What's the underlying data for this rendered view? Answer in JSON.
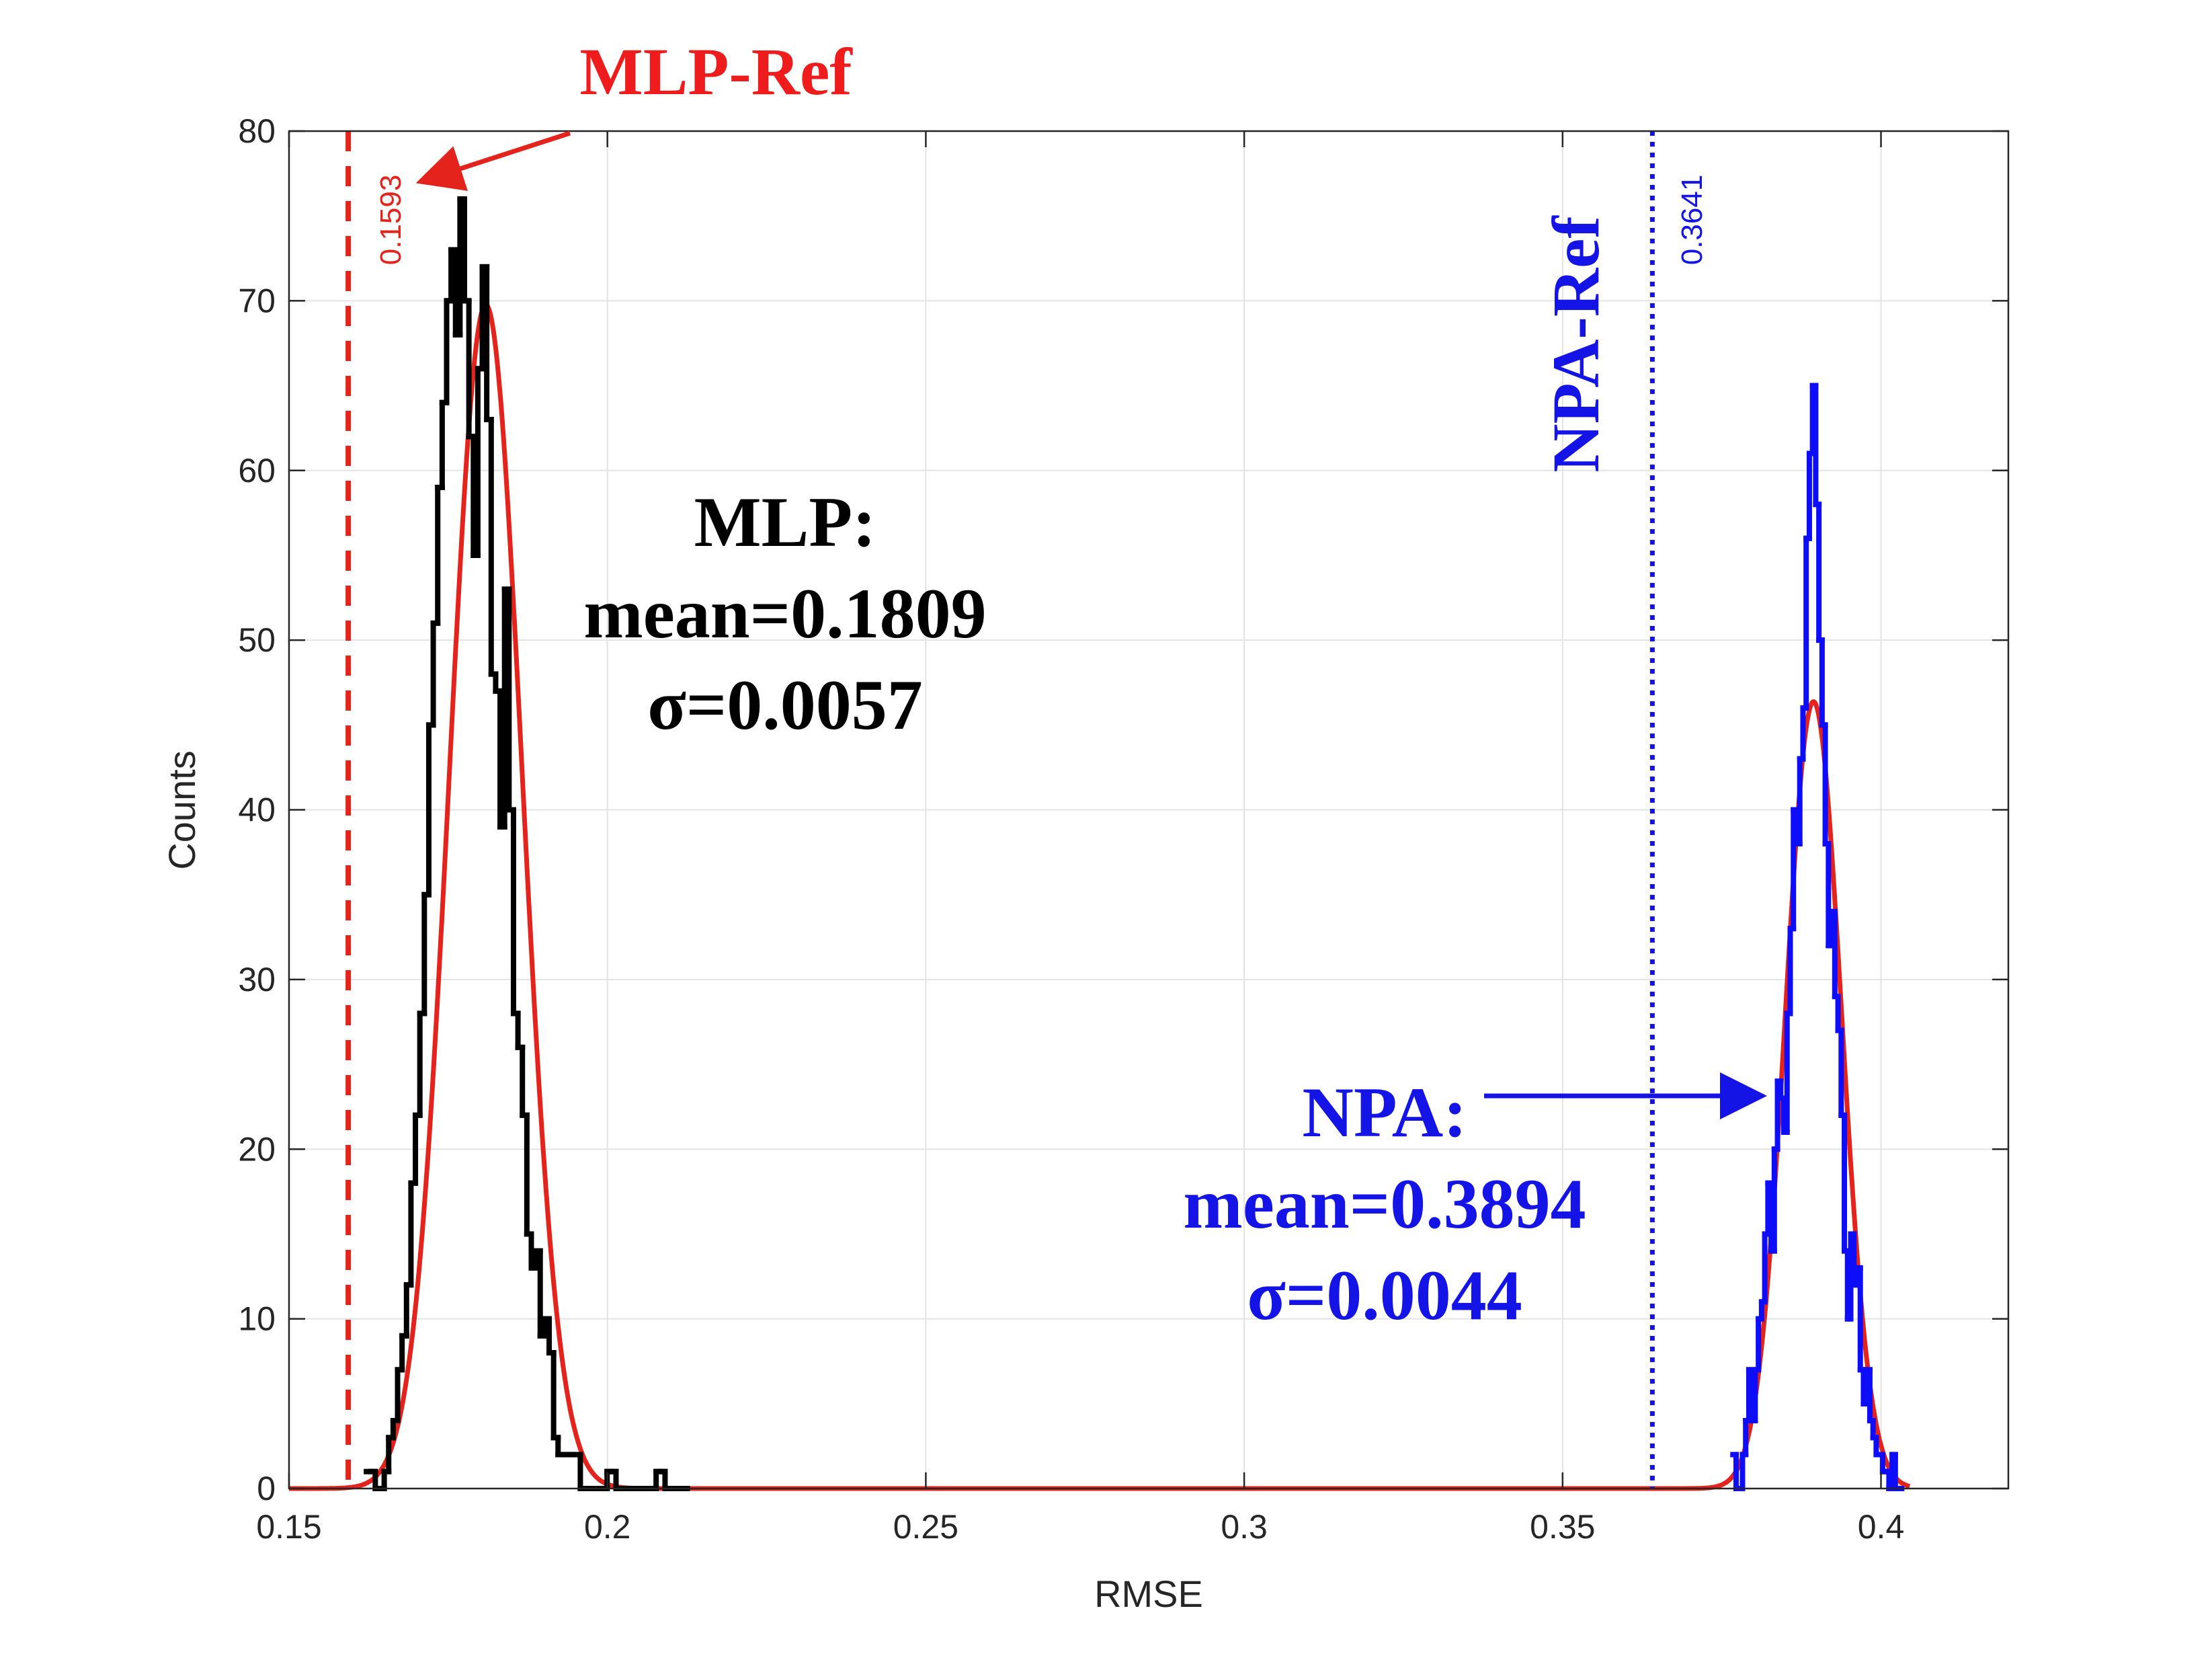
{
  "chart_data": {
    "type": "histogram",
    "xlabel": "RMSE",
    "ylabel": "Counts",
    "xlim": [
      0.15,
      0.42
    ],
    "ylim": [
      0,
      80
    ],
    "grid": true,
    "xticks": [
      0.15,
      0.2,
      0.25,
      0.3,
      0.35,
      0.4
    ],
    "xtick_labels": [
      "0.15",
      "0.2",
      "0.25",
      "0.3",
      "0.35",
      "0.4"
    ],
    "yticks": [
      0,
      10,
      20,
      30,
      40,
      50,
      60,
      70,
      80
    ],
    "ytick_labels": [
      "0",
      "10",
      "20",
      "30",
      "40",
      "50",
      "60",
      "70",
      "80"
    ],
    "series": [
      {
        "name": "MLP",
        "color": "#000000",
        "fit_color": "#e3231c",
        "mean": 0.1809,
        "sigma": 0.0057,
        "bin_width": 0.0007,
        "x": [
          0.1625,
          0.1632,
          0.1639,
          0.1646,
          0.1653,
          0.166,
          0.1667,
          0.1674,
          0.1681,
          0.1688,
          0.1695,
          0.1702,
          0.1709,
          0.1716,
          0.1723,
          0.173,
          0.1737,
          0.1744,
          0.1751,
          0.1758,
          0.1765,
          0.1772,
          0.1779,
          0.1786,
          0.1793,
          0.18,
          0.1807,
          0.1814,
          0.1821,
          0.1828,
          0.1835,
          0.1842,
          0.1849,
          0.1856,
          0.1863,
          0.187,
          0.1877,
          0.1884,
          0.1891,
          0.1898,
          0.1905,
          0.1912,
          0.1919,
          0.1926,
          0.1933,
          0.194,
          0.1947,
          0.1954,
          0.1961,
          0.1968,
          0.1975,
          0.1982,
          0.1989,
          0.1996,
          0.2003,
          0.201,
          0.2017,
          0.2024,
          0.2031,
          0.2038,
          0.2045,
          0.2052,
          0.2059,
          0.2066,
          0.2073,
          0.208,
          0.2087,
          0.2094,
          0.2101,
          0.2108,
          0.2115,
          0.2122
        ],
        "counts": [
          1,
          1,
          0,
          0,
          1,
          3,
          4,
          7,
          9,
          12,
          18,
          22,
          28,
          35,
          45,
          51,
          59,
          64,
          70,
          73,
          68,
          76,
          70,
          62,
          55,
          66,
          72,
          63,
          48,
          47,
          39,
          53,
          40,
          28,
          26,
          22,
          15,
          13,
          14,
          9,
          10,
          8,
          3,
          2,
          2,
          2,
          2,
          2,
          0,
          0,
          0,
          0,
          0,
          0,
          1,
          1,
          0,
          0,
          0,
          0,
          0,
          0,
          0,
          0,
          0,
          1,
          1,
          0,
          0,
          0,
          0,
          0
        ]
      },
      {
        "name": "NPA",
        "color": "#0d0dfa",
        "fit_color": "#e3231c",
        "mean": 0.3894,
        "sigma": 0.0044,
        "bin_width": 0.0005,
        "x": [
          0.377,
          0.3775,
          0.378,
          0.3785,
          0.379,
          0.3795,
          0.38,
          0.3805,
          0.381,
          0.3815,
          0.382,
          0.3825,
          0.383,
          0.3835,
          0.384,
          0.3845,
          0.385,
          0.3855,
          0.386,
          0.3865,
          0.387,
          0.3875,
          0.388,
          0.3885,
          0.389,
          0.3895,
          0.39,
          0.3905,
          0.391,
          0.3915,
          0.392,
          0.3925,
          0.393,
          0.3935,
          0.394,
          0.3945,
          0.395,
          0.3955,
          0.396,
          0.3965,
          0.397,
          0.3975,
          0.398,
          0.3985,
          0.399,
          0.4,
          0.4005,
          0.401,
          0.4015,
          0.402,
          0.4025,
          0.403
        ],
        "counts": [
          2,
          0,
          0,
          2,
          4,
          7,
          4,
          7,
          10,
          11,
          15,
          18,
          14,
          20,
          24,
          23,
          21,
          28,
          33,
          40,
          38,
          43,
          46,
          56,
          61,
          65,
          58,
          50,
          45,
          38,
          32,
          34,
          29,
          27,
          22,
          14,
          10,
          15,
          12,
          13,
          7,
          5,
          7,
          4,
          3,
          2,
          1,
          1,
          0,
          2,
          0,
          0
        ]
      }
    ],
    "reference_lines": [
      {
        "name": "MLP-Ref",
        "x": 0.1593,
        "value_label": "0.1593",
        "style": "dashed",
        "color": "#e3231c"
      },
      {
        "name": "NPA-Ref",
        "x": 0.3641,
        "value_label": "0.3641",
        "style": "dotted",
        "color": "#1414e6"
      }
    ],
    "annotations": {
      "mlp_ref_title": "MLP-Ref",
      "npa_ref_title": "NPA-Ref",
      "mlp_title": "MLP:",
      "mlp_mean": "mean=0.1809",
      "mlp_sigma": "σ=0.0057",
      "npa_title": "NPA:",
      "npa_mean": "mean=0.3894",
      "npa_sigma": "σ=0.0044"
    }
  }
}
